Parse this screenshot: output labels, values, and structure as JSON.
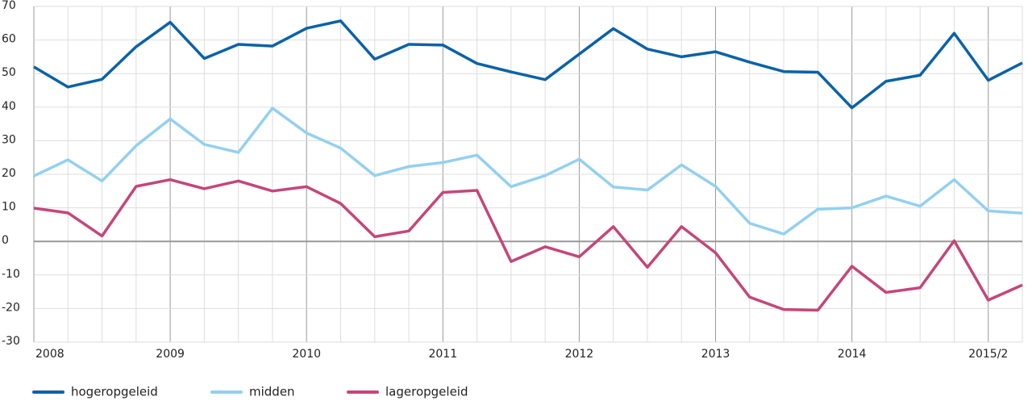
{
  "chart_data": {
    "type": "line",
    "categories": [
      "2008",
      null,
      null,
      null,
      "2009",
      null,
      null,
      null,
      "2010",
      null,
      null,
      null,
      "2011",
      null,
      null,
      null,
      "2012",
      null,
      null,
      null,
      "2013",
      null,
      null,
      null,
      "2014",
      null,
      null,
      null,
      "2015/2",
      null
    ],
    "series": [
      {
        "name": "hogeropgeleid",
        "color": "#0a62a8",
        "values": [
          52,
          46,
          48.3,
          58,
          65.3,
          54.5,
          58.7,
          58.2,
          63.5,
          65.7,
          54.3,
          58.7,
          58.5,
          53,
          50.5,
          48.2,
          55.8,
          63.4,
          57.3,
          55,
          56.5,
          53.4,
          50.6,
          50.4,
          39.8,
          47.7,
          49.5,
          62,
          48,
          53.2
        ]
      },
      {
        "name": "midden",
        "color": "#93d0f0",
        "values": [
          19.5,
          24.3,
          18,
          28.5,
          36.5,
          28.9,
          26.5,
          39.7,
          32.3,
          27.8,
          19.6,
          22.3,
          23.5,
          25.7,
          16.3,
          19.6,
          24.5,
          16.2,
          15.3,
          22.8,
          16.4,
          5.4,
          2.2,
          9.6,
          10,
          13.5,
          10.5,
          18.4,
          9.1,
          8.4
        ]
      },
      {
        "name": "lageropgeleid",
        "color": "#c54679",
        "values": [
          9.9,
          8.5,
          1.6,
          16.4,
          18.4,
          15.7,
          18,
          15,
          16.3,
          11.3,
          1.4,
          3.1,
          14.6,
          15.2,
          -6,
          -1.6,
          -4.6,
          4.4,
          -7.7,
          4.4,
          -3.4,
          -16.6,
          -20.3,
          -20.5,
          -7.4,
          -15.2,
          -13.8,
          0.2,
          -17.5,
          -13
        ]
      }
    ],
    "ylim": [
      -30,
      70
    ],
    "yticks": [
      -30,
      -20,
      -10,
      0,
      10,
      20,
      30,
      40,
      50,
      60,
      70
    ],
    "grid": true,
    "legend": "bottom"
  }
}
